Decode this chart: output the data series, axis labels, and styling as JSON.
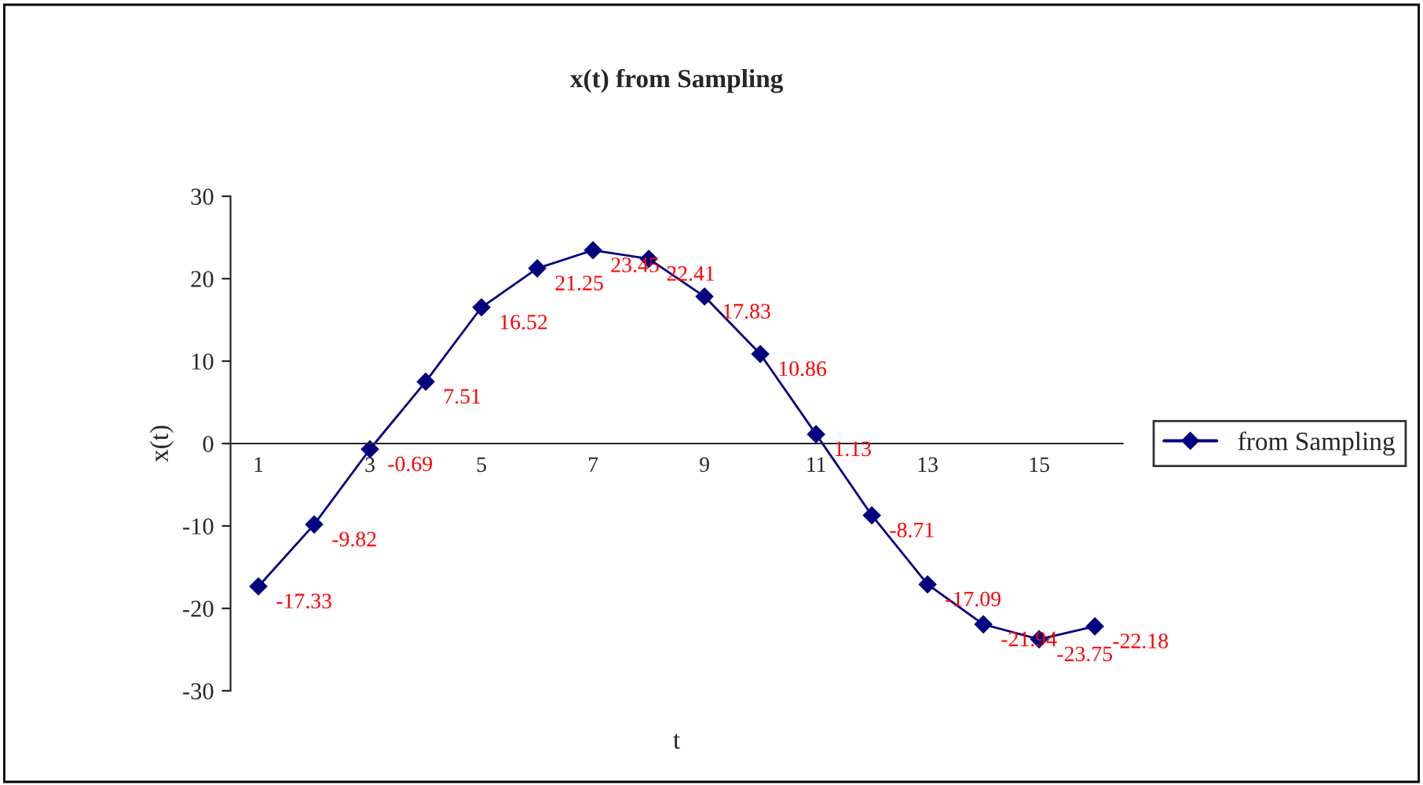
{
  "chart_data": {
    "type": "line",
    "title": "x(t) from Sampling",
    "xlabel": "t",
    "ylabel": "x(t)",
    "categories": [
      "1",
      null,
      "3",
      null,
      "5",
      null,
      "7",
      null,
      "9",
      null,
      "11",
      null,
      "13",
      null,
      "15",
      null
    ],
    "series": [
      {
        "name": "from Sampling",
        "color": "#000080",
        "values": [
          -17.33,
          -9.82,
          -0.69,
          7.51,
          16.52,
          21.25,
          23.45,
          22.41,
          17.83,
          10.86,
          1.13,
          -8.71,
          -17.09,
          -21.94,
          -23.75,
          -22.18
        ]
      }
    ],
    "ylim": [
      -30,
      30
    ],
    "yticks": [
      -30,
      -20,
      -10,
      0,
      10,
      20,
      30
    ],
    "data_labels": true,
    "grid": false,
    "legend": "right",
    "marker": "diamond",
    "line_style": "solid"
  }
}
